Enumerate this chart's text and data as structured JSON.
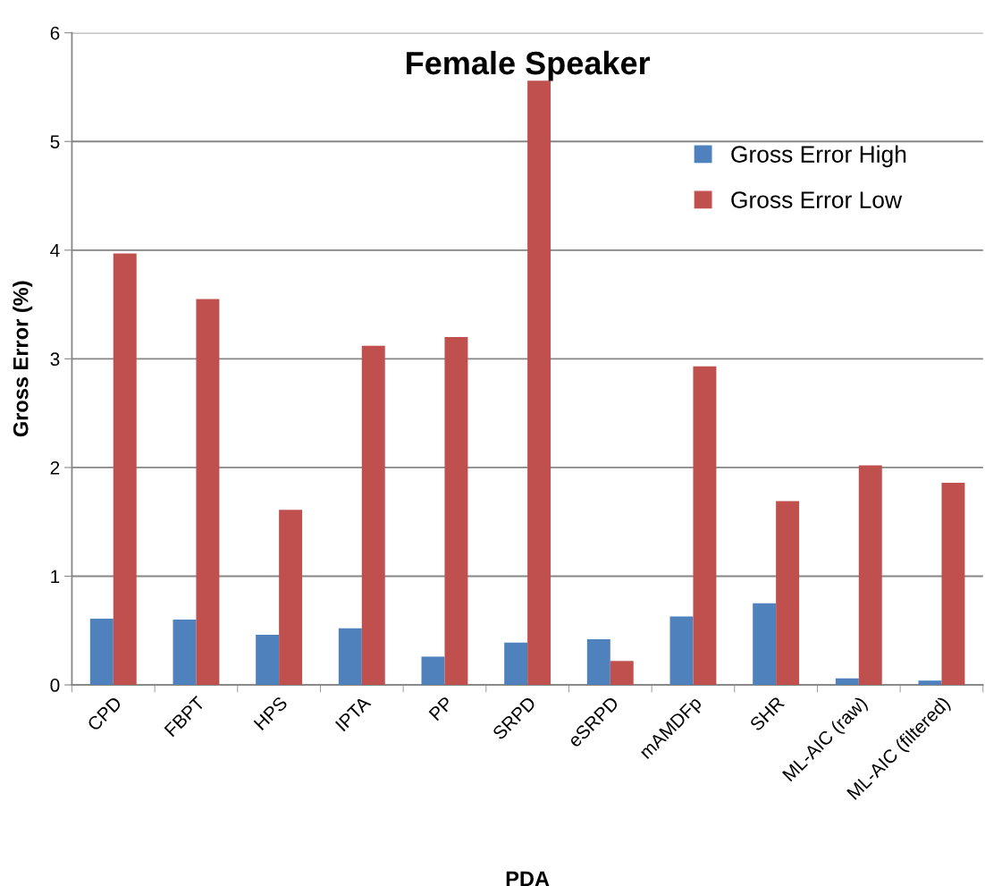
{
  "chart_data": {
    "type": "bar",
    "title": "Female Speaker",
    "xlabel": "PDA",
    "ylabel": "Gross Error (%)",
    "categories": [
      "CPD",
      "FBPT",
      "HPS",
      "IPTA",
      "PP",
      "SRPD",
      "eSRPD",
      "mAMDFp",
      "SHR",
      "ML-AIC (raw)",
      "ML-AIC (filtered)"
    ],
    "series": [
      {
        "name": "Gross Error High",
        "color": "#4f81bd",
        "values": [
          0.61,
          0.6,
          0.46,
          0.52,
          0.26,
          0.39,
          0.42,
          0.63,
          0.75,
          0.06,
          0.04
        ]
      },
      {
        "name": "Gross Error Low",
        "color": "#c0504d",
        "values": [
          3.97,
          3.55,
          1.61,
          3.12,
          3.2,
          5.56,
          0.22,
          2.93,
          1.69,
          2.02,
          1.86
        ]
      }
    ],
    "ylim": [
      0,
      6
    ],
    "yticks": [
      0,
      1,
      2,
      3,
      4,
      5,
      6
    ],
    "grid": "y",
    "legend": "top right"
  }
}
